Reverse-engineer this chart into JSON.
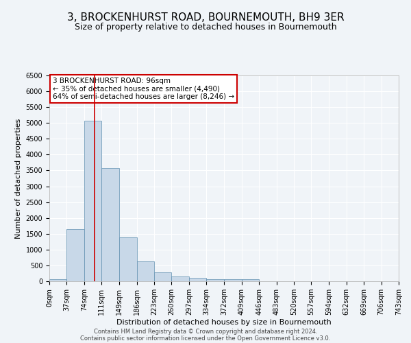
{
  "title": "3, BROCKENHURST ROAD, BOURNEMOUTH, BH9 3ER",
  "subtitle": "Size of property relative to detached houses in Bournemouth",
  "xlabel": "Distribution of detached houses by size in Bournemouth",
  "ylabel": "Number of detached properties",
  "bin_edges": [
    0,
    37,
    74,
    111,
    149,
    186,
    223,
    260,
    297,
    334,
    372,
    409,
    446,
    483,
    520,
    557,
    594,
    632,
    669,
    706,
    743
  ],
  "bar_heights": [
    75,
    1650,
    5060,
    3580,
    1390,
    620,
    290,
    155,
    110,
    70,
    55,
    55,
    0,
    0,
    0,
    0,
    0,
    0,
    0,
    0
  ],
  "bar_facecolor": "#c8d8e8",
  "bar_edgecolor": "#6090b0",
  "background_color": "#f0f4f8",
  "grid_color": "#ffffff",
  "vline_x": 96,
  "vline_color": "#cc0000",
  "ylim": [
    0,
    6500
  ],
  "xlim": [
    0,
    743
  ],
  "annotation_title": "3 BROCKENHURST ROAD: 96sqm",
  "annotation_line1": "← 35% of detached houses are smaller (4,490)",
  "annotation_line2": "64% of semi-detached houses are larger (8,246) →",
  "annotation_box_color": "#cc0000",
  "footer_line1": "Contains HM Land Registry data © Crown copyright and database right 2024.",
  "footer_line2": "Contains public sector information licensed under the Open Government Licence v3.0.",
  "title_fontsize": 11,
  "subtitle_fontsize": 9,
  "tick_fontsize": 7,
  "ylabel_fontsize": 8,
  "xlabel_fontsize": 8,
  "annotation_fontsize": 7.5,
  "footer_fontsize": 6
}
